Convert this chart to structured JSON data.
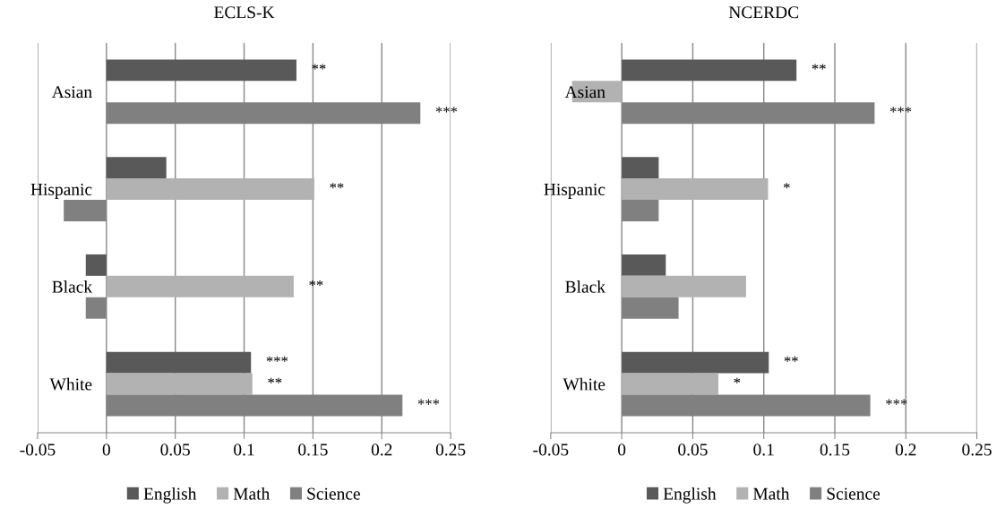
{
  "chart_data": [
    {
      "type": "bar",
      "orientation": "horizontal",
      "title": "ECLS-K",
      "categories": [
        "Asian",
        "Hispanic",
        "Black",
        "White"
      ],
      "series": [
        {
          "name": "English",
          "color": "#595959",
          "values": [
            0.138,
            0.0435,
            -0.015,
            0.105
          ],
          "value_labels": [
            "**",
            null,
            null,
            "***"
          ]
        },
        {
          "name": "Math",
          "color": "#b2b2b2",
          "values": [
            null,
            0.151,
            0.136,
            0.106
          ],
          "value_labels": [
            null,
            "**",
            "**",
            "**"
          ]
        },
        {
          "name": "Science",
          "color": "#808080",
          "values": [
            0.228,
            -0.031,
            -0.015,
            0.215
          ],
          "value_labels": [
            "***",
            null,
            null,
            "***"
          ]
        }
      ],
      "xlim": [
        -0.05,
        0.25
      ],
      "xticks": [
        -0.05,
        0,
        0.05,
        0.1,
        0.15,
        0.2,
        0.25
      ],
      "grid": "x",
      "legend": "bottom"
    },
    {
      "type": "bar",
      "orientation": "horizontal",
      "title": "NCERDC",
      "categories": [
        "Asian",
        "Hispanic",
        "Black",
        "White"
      ],
      "series": [
        {
          "name": "English",
          "color": "#595959",
          "values": [
            0.123,
            0.026,
            0.031,
            0.1035
          ],
          "value_labels": [
            "**",
            null,
            null,
            "**"
          ]
        },
        {
          "name": "Math",
          "color": "#b2b2b2",
          "values": [
            -0.035,
            0.103,
            0.0875,
            0.068
          ],
          "value_labels": [
            null,
            "*",
            null,
            "*"
          ]
        },
        {
          "name": "Science",
          "color": "#808080",
          "values": [
            0.178,
            0.026,
            0.04,
            0.175
          ],
          "value_labels": [
            "***",
            null,
            null,
            "***"
          ]
        }
      ],
      "xlim": [
        -0.05,
        0.25
      ],
      "xticks": [
        -0.05,
        0,
        0.05,
        0.1,
        0.15,
        0.2,
        0.25
      ],
      "grid": "x",
      "legend": "bottom"
    }
  ]
}
